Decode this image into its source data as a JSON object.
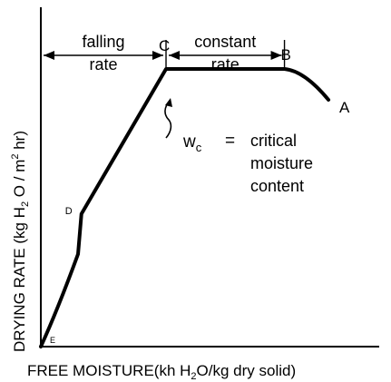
{
  "chart_data": {
    "type": "line",
    "title": "",
    "xlabel_parts": [
      "FREE MOISTURE(kh H",
      "2",
      "O/kg dry solid)"
    ],
    "ylabel_parts": [
      "DRYING RATE (kg H",
      "2",
      " O / m",
      "2",
      " hr)"
    ],
    "series": [
      {
        "points": [
          [
            0,
            0
          ],
          [
            0.5,
            1.2
          ],
          [
            1.1,
            3.0
          ],
          [
            1.2,
            4.3
          ],
          [
            3.7,
            9.0
          ],
          [
            7.2,
            9.0
          ],
          [
            8.5,
            8.0
          ]
        ]
      }
    ],
    "xlim": [
      0,
      10
    ],
    "ylim": [
      0,
      11
    ],
    "points_labeled": [
      {
        "label": "A",
        "x": 8.5,
        "y": 8.0
      },
      {
        "label": "B",
        "x": 7.2,
        "y": 9.0
      },
      {
        "label": "C",
        "x": 3.7,
        "y": 9.0
      },
      {
        "label": "D",
        "x": 1.2,
        "y": 4.3
      },
      {
        "label": "E",
        "x": 0,
        "y": 0
      }
    ],
    "regions": [
      {
        "line1": "falling",
        "line2": "rate",
        "from_x": 0,
        "to_x": 3.7
      },
      {
        "line1": "constant",
        "line2": "rate",
        "from_x": 3.7,
        "to_x": 7.2
      }
    ],
    "annotation": {
      "symbol": "w",
      "subscript": "c",
      "equals": "=",
      "line1": "critical",
      "line2": "moisture",
      "line3": "content"
    }
  }
}
